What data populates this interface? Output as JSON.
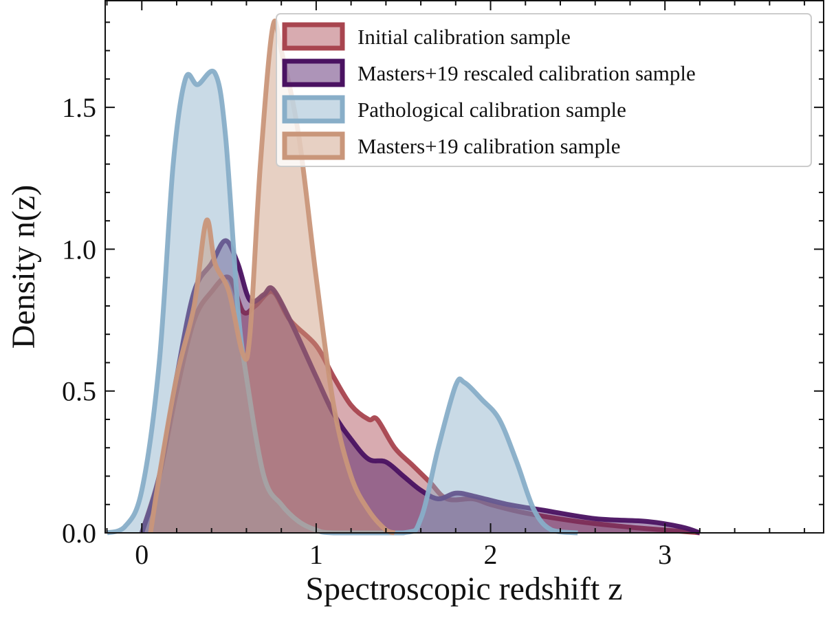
{
  "chart_data": {
    "type": "area",
    "title": "",
    "xlabel": "Spectroscopic redshift z",
    "ylabel": "Density n(z)",
    "xlim": [
      -0.21,
      3.91
    ],
    "ylim": [
      0,
      1.876
    ],
    "xticks": [
      0,
      1,
      2,
      3
    ],
    "xtick_labels": [
      "0",
      "1",
      "2",
      "3"
    ],
    "yticks": [
      0,
      0.5,
      1.0,
      1.5
    ],
    "ytick_labels": [
      "0.0",
      "0.5",
      "1.0",
      "1.5"
    ],
    "grid": false,
    "legend_position": "top-right",
    "series": [
      {
        "name": "Initial calibration sample",
        "color": "#a8454f",
        "x": [
          0,
          0.1,
          0.2,
          0.3,
          0.4,
          0.5,
          0.58,
          0.65,
          0.75,
          0.85,
          1.0,
          1.1,
          1.2,
          1.3,
          1.35,
          1.45,
          1.55,
          1.65,
          1.75,
          1.9,
          2.0,
          2.2,
          2.5,
          2.8,
          3.0,
          3.2
        ],
        "y": [
          0,
          0.2,
          0.5,
          0.75,
          0.85,
          0.9,
          0.78,
          0.8,
          0.85,
          0.75,
          0.66,
          0.55,
          0.45,
          0.4,
          0.4,
          0.3,
          0.24,
          0.18,
          0.12,
          0.12,
          0.1,
          0.07,
          0.04,
          0.02,
          0.01,
          0
        ]
      },
      {
        "name": "Masters+19 rescaled calibration sample",
        "color": "#4a1261",
        "x": [
          0,
          0.1,
          0.2,
          0.3,
          0.4,
          0.48,
          0.55,
          0.62,
          0.7,
          0.75,
          0.85,
          1.0,
          1.1,
          1.2,
          1.3,
          1.4,
          1.5,
          1.6,
          1.7,
          1.8,
          1.9,
          2.1,
          2.3,
          2.6,
          2.9,
          3.1,
          3.2
        ],
        "y": [
          0,
          0.2,
          0.55,
          0.85,
          0.95,
          1.03,
          0.95,
          0.82,
          0.84,
          0.86,
          0.75,
          0.55,
          0.42,
          0.33,
          0.26,
          0.25,
          0.2,
          0.15,
          0.12,
          0.14,
          0.13,
          0.1,
          0.08,
          0.05,
          0.04,
          0.02,
          0
        ]
      },
      {
        "name": "Pathological calibration sample",
        "color": "#88aec8",
        "x": [
          -0.2,
          -0.1,
          0,
          0.1,
          0.18,
          0.25,
          0.32,
          0.42,
          0.48,
          0.55,
          0.6,
          0.7,
          0.8,
          0.9,
          1.0,
          1.1,
          1.5,
          1.6,
          1.7,
          1.8,
          1.85,
          1.95,
          2.05,
          2.15,
          2.25,
          2.35,
          2.5
        ],
        "y": [
          0,
          0.02,
          0.15,
          0.6,
          1.3,
          1.6,
          1.58,
          1.62,
          1.4,
          0.8,
          0.55,
          0.2,
          0.1,
          0.04,
          0.01,
          0,
          0,
          0.05,
          0.3,
          0.52,
          0.53,
          0.47,
          0.4,
          0.25,
          0.08,
          0.01,
          0
        ]
      },
      {
        "name": "Masters+19 calibration sample",
        "color": "#c9967a",
        "x": [
          0.05,
          0.1,
          0.2,
          0.3,
          0.37,
          0.42,
          0.5,
          0.58,
          0.62,
          0.68,
          0.75,
          0.8,
          0.9,
          1.0,
          1.1,
          1.2,
          1.3,
          1.4,
          1.45
        ],
        "y": [
          0,
          0.2,
          0.55,
          0.8,
          1.1,
          0.95,
          0.85,
          0.63,
          0.7,
          1.3,
          1.78,
          1.7,
          1.4,
          0.9,
          0.45,
          0.2,
          0.08,
          0.01,
          0
        ]
      }
    ]
  }
}
